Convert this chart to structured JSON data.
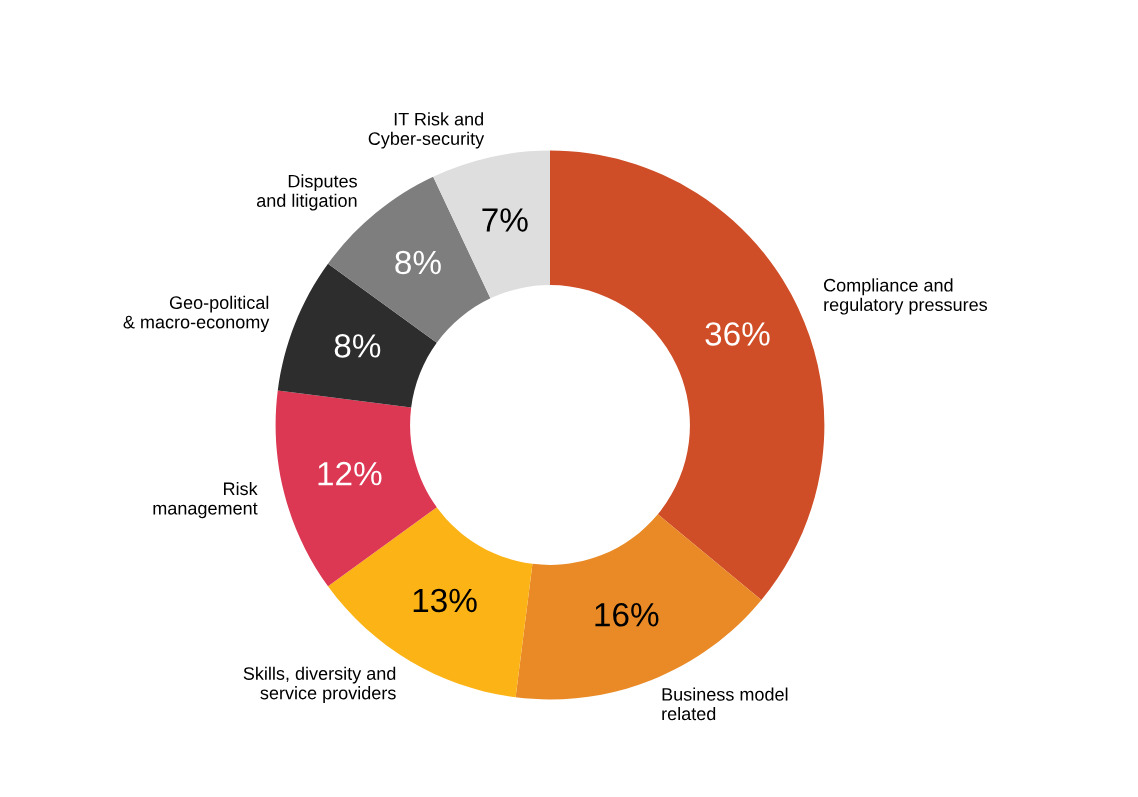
{
  "chart_data": {
    "type": "donut",
    "categories": [
      "Compliance and\nregulatory pressures",
      "Business model\nrelated",
      "Skills, diversity and\nservice providers",
      "Risk\nmanagement",
      "Geo-political\n& macro-economy",
      "Disputes\nand litigation",
      "IT Risk and\nCyber-security"
    ],
    "values": [
      36,
      16,
      13,
      12,
      8,
      8,
      7
    ],
    "colors": [
      "#d04e27",
      "#e98a26",
      "#fcb316",
      "#dc3753",
      "#2d2d2d",
      "#7d7e7d",
      "#dedede"
    ],
    "value_labels": [
      "36%",
      "16%",
      "13%",
      "12%",
      "8%",
      "8%",
      "7%"
    ],
    "legend": false
  }
}
